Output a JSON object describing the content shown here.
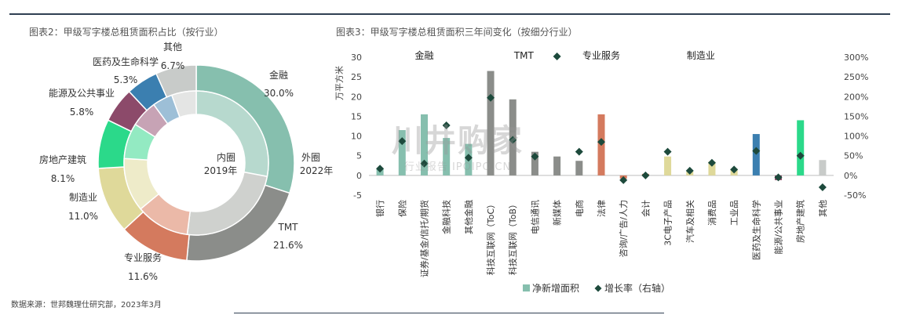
{
  "titles": {
    "left": "图表2：甲级写字楼总租赁面积占比（按行业）",
    "right": "图表3：甲级写字楼总租赁面积三年间变化（按细分行业）"
  },
  "source": "数据来源：世邦魏理仕研究部，2023年3月",
  "watermark": {
    "line1": "川井购家",
    "line2": "行业报告 IPOIPO.CN"
  },
  "chart_data": [
    {
      "type": "donut",
      "inner_label": "内圈",
      "inner_sublabel": "2019年",
      "outer_label": "外圈",
      "outer_sublabel": "2022年",
      "segments": [
        {
          "name": "金融",
          "outer": 30.0,
          "inner": 28.0,
          "label": "30.0%",
          "color": "#86bfae",
          "inner_color": "#b7d9ce"
        },
        {
          "name": "TMT",
          "outer": 21.6,
          "inner": 24.0,
          "label": "21.6%",
          "color": "#8b8d8a",
          "inner_color": "#cfd1ce"
        },
        {
          "name": "专业服务",
          "outer": 11.6,
          "inner": 12.0,
          "label": "11.6%",
          "color": "#d47a5e",
          "inner_color": "#ebb9a8"
        },
        {
          "name": "制造业",
          "outer": 11.0,
          "inner": 12.0,
          "label": "11.0%",
          "color": "#dfd99a",
          "inner_color": "#eeebc9"
        },
        {
          "name": "房地产建筑",
          "outer": 8.1,
          "inner": 8.0,
          "label": "8.1%",
          "color": "#2bd98a",
          "inner_color": "#93eac2"
        },
        {
          "name": "能源及公共事业",
          "outer": 5.8,
          "inner": 6.0,
          "label": "5.8%",
          "color": "#8c4a6a",
          "inner_color": "#c7a3b5"
        },
        {
          "name": "医药及生命科学",
          "outer": 5.3,
          "inner": 4.5,
          "label": "5.3%",
          "color": "#3b7fb0",
          "inner_color": "#9dbfd7"
        },
        {
          "name": "其他",
          "outer": 6.7,
          "inner": 5.5,
          "label": "6.7%",
          "color": "#c8cbc9",
          "inner_color": "#e4e5e4"
        }
      ]
    },
    {
      "type": "bar",
      "ylabel": "万平方米",
      "ylim": [
        -5,
        30
      ],
      "yticks": [
        -5,
        0,
        5,
        10,
        15,
        20,
        25,
        30
      ],
      "y2lim": [
        -50,
        300
      ],
      "y2ticks": [
        "-50%",
        "0%",
        "50%",
        "100%",
        "150%",
        "200%",
        "250%",
        "300%"
      ],
      "groups": [
        {
          "name": "金融",
          "start": 0,
          "end": 4
        },
        {
          "name": "TMT",
          "start": 5,
          "end": 8
        },
        {
          "name": "专业服务",
          "start": 9,
          "end": 11
        },
        {
          "name": "制造业",
          "start": 12,
          "end": 17
        }
      ],
      "categories": [
        "银行",
        "保险",
        "证券/基金/信托/期货",
        "金融科技",
        "其他金融",
        "科技互联网（ToC）",
        "科技互联网（ToB）",
        "电信通讯",
        "新媒体",
        "电商",
        "法律",
        "咨询/广告/人力",
        "会计",
        "3C电子产品",
        "汽车及相关",
        "消费品",
        "工业品",
        "医药及生命科学",
        "能源/公共事业",
        "房地产建筑",
        "其他"
      ],
      "series": [
        {
          "name": "净新增面积",
          "kind": "bar",
          "values": [
            1.8,
            11.5,
            15.5,
            9.5,
            8.0,
            26.5,
            19.3,
            6.0,
            4.8,
            3.7,
            15.5,
            -0.8,
            0.4,
            4.8,
            1.0,
            3.5,
            1.7,
            10.5,
            -1.2,
            14.0,
            3.9
          ]
        },
        {
          "name": "增长率（右轴）",
          "kind": "marker",
          "values": [
            17,
            87,
            30,
            127,
            45,
            197,
            90,
            48,
            302,
            60,
            85,
            -12,
            0,
            60,
            12,
            32,
            15,
            62,
            -5,
            50,
            -30
          ]
        }
      ],
      "bar_colors": [
        "#86bfae",
        "#86bfae",
        "#86bfae",
        "#86bfae",
        "#86bfae",
        "#8b8d8a",
        "#8b8d8a",
        "#8b8d8a",
        "#8b8d8a",
        "#8b8d8a",
        "#d47a5e",
        "#d47a5e",
        "#d47a5e",
        "#dfd99a",
        "#dfd99a",
        "#dfd99a",
        "#dfd99a",
        "#3b7fb0",
        "#8c4a6a",
        "#2bd98a",
        "#c8cbc9"
      ],
      "marker_color": "#1d4a3c",
      "legend": {
        "position": "bottom"
      }
    }
  ]
}
